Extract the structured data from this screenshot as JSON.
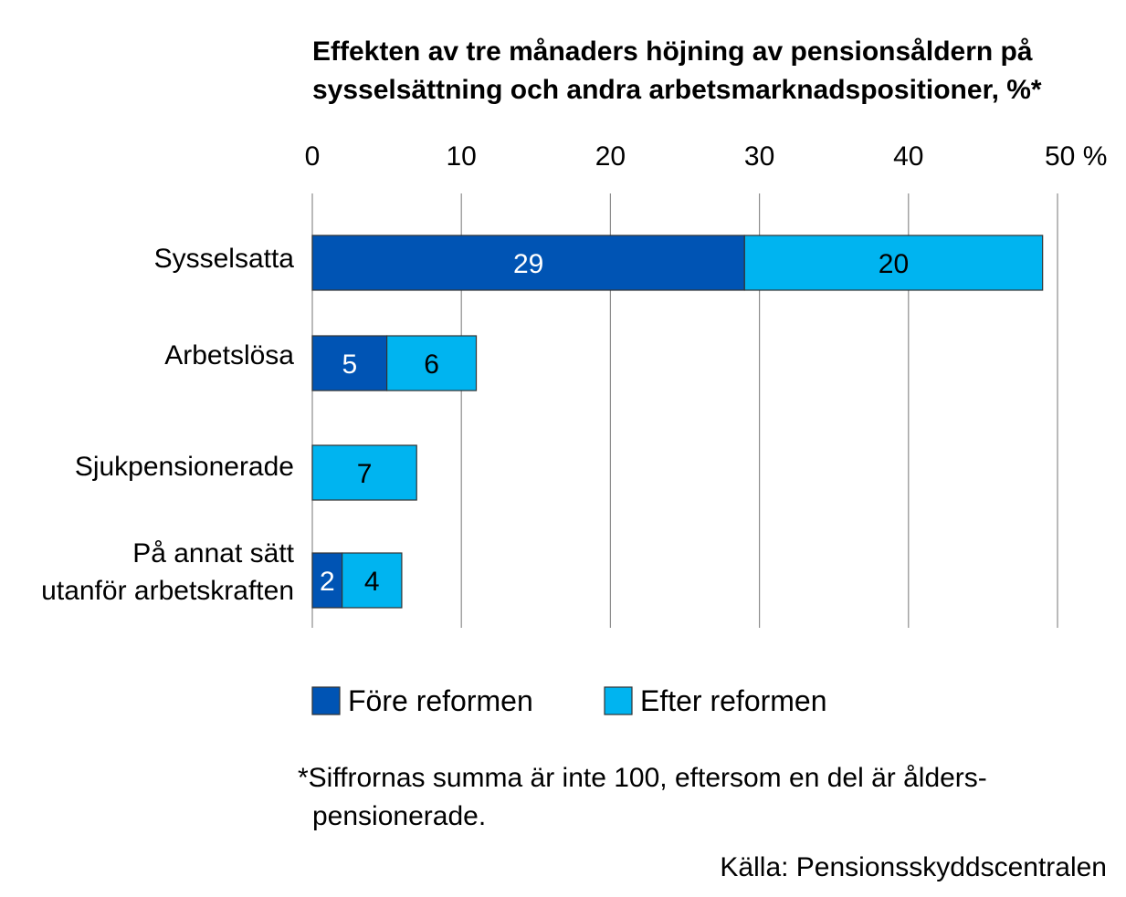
{
  "chart_data": {
    "type": "bar",
    "orientation": "horizontal",
    "stacked": true,
    "title": [
      "Effekten av tre månaders höjning av pensionsåldern på",
      "sysselsättning och andra arbetsmarknadspositioner, %*"
    ],
    "categories": [
      [
        "Sysselsatta"
      ],
      [
        "Arbetslösa"
      ],
      [
        "Sjukpensionerade"
      ],
      [
        "På annat sätt",
        "utanför arbetskraften"
      ]
    ],
    "series": [
      {
        "name": "Före reformen",
        "values": [
          29,
          5,
          0,
          2
        ],
        "color": "#0054B4"
      },
      {
        "name": "Efter reformen",
        "values": [
          20,
          6,
          7,
          4
        ],
        "color": "#00B4F0"
      }
    ],
    "xlim": [
      0,
      50
    ],
    "ticks": [
      "0",
      "10",
      "20",
      "30",
      "40",
      "50 %"
    ],
    "grid": true,
    "axis_position": "top",
    "legend_position": "bottom",
    "footnote": [
      "*Siffrornas summa är inte 100, eftersom en del är ålders-",
      "pensionerade."
    ],
    "source": "Källa: Pensionsskyddscentralen"
  }
}
